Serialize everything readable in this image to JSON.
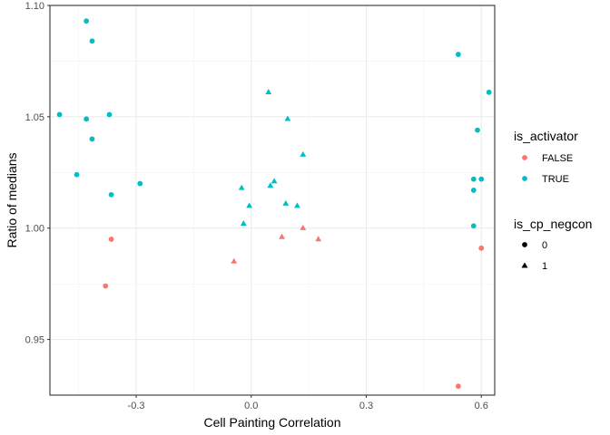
{
  "chart_data": {
    "type": "scatter",
    "xlabel": "Cell Painting Correlation",
    "ylabel": "Ratio of medians",
    "xlim": [
      -0.525,
      0.635
    ],
    "ylim": [
      0.925,
      1.1
    ],
    "x_ticks": [
      -0.3,
      0.0,
      0.3,
      0.6
    ],
    "x_tick_labels": [
      "-0.3",
      "0.0",
      "0.3",
      "0.6"
    ],
    "y_ticks": [
      0.95,
      1.0,
      1.05,
      1.1
    ],
    "y_tick_labels": [
      "0.95",
      "1.00",
      "1.05",
      "1.10"
    ],
    "grid": true,
    "legend_position": "right",
    "color_legend": {
      "title": "is_activator",
      "entries": [
        {
          "label": "FALSE",
          "color": "#F8766D"
        },
        {
          "label": "TRUE",
          "color": "#00BFC4"
        }
      ]
    },
    "shape_legend": {
      "title": "is_cp_negcon",
      "entries": [
        {
          "label": "0",
          "shape": "circle"
        },
        {
          "label": "1",
          "shape": "triangle"
        }
      ]
    },
    "points": [
      {
        "x": -0.43,
        "y": 1.093,
        "activator": "TRUE",
        "negcon": "0"
      },
      {
        "x": -0.415,
        "y": 1.084,
        "activator": "TRUE",
        "negcon": "0"
      },
      {
        "x": -0.5,
        "y": 1.051,
        "activator": "TRUE",
        "negcon": "0"
      },
      {
        "x": -0.43,
        "y": 1.049,
        "activator": "TRUE",
        "negcon": "0"
      },
      {
        "x": -0.37,
        "y": 1.051,
        "activator": "TRUE",
        "negcon": "0"
      },
      {
        "x": -0.415,
        "y": 1.04,
        "activator": "TRUE",
        "negcon": "0"
      },
      {
        "x": -0.455,
        "y": 1.024,
        "activator": "TRUE",
        "negcon": "0"
      },
      {
        "x": -0.29,
        "y": 1.02,
        "activator": "TRUE",
        "negcon": "0"
      },
      {
        "x": -0.365,
        "y": 1.015,
        "activator": "TRUE",
        "negcon": "0"
      },
      {
        "x": -0.365,
        "y": 0.995,
        "activator": "FALSE",
        "negcon": "0"
      },
      {
        "x": -0.38,
        "y": 0.974,
        "activator": "FALSE",
        "negcon": "0"
      },
      {
        "x": 0.045,
        "y": 1.061,
        "activator": "TRUE",
        "negcon": "1"
      },
      {
        "x": 0.095,
        "y": 1.049,
        "activator": "TRUE",
        "negcon": "1"
      },
      {
        "x": 0.135,
        "y": 1.033,
        "activator": "TRUE",
        "negcon": "1"
      },
      {
        "x": -0.025,
        "y": 1.018,
        "activator": "TRUE",
        "negcon": "1"
      },
      {
        "x": 0.06,
        "y": 1.021,
        "activator": "TRUE",
        "negcon": "1"
      },
      {
        "x": 0.05,
        "y": 1.019,
        "activator": "TRUE",
        "negcon": "1"
      },
      {
        "x": -0.005,
        "y": 1.01,
        "activator": "TRUE",
        "negcon": "1"
      },
      {
        "x": 0.09,
        "y": 1.011,
        "activator": "TRUE",
        "negcon": "1"
      },
      {
        "x": 0.12,
        "y": 1.01,
        "activator": "TRUE",
        "negcon": "1"
      },
      {
        "x": -0.02,
        "y": 1.002,
        "activator": "TRUE",
        "negcon": "1"
      },
      {
        "x": 0.135,
        "y": 1.0,
        "activator": "FALSE",
        "negcon": "1"
      },
      {
        "x": 0.08,
        "y": 0.996,
        "activator": "FALSE",
        "negcon": "1"
      },
      {
        "x": 0.175,
        "y": 0.995,
        "activator": "FALSE",
        "negcon": "1"
      },
      {
        "x": -0.045,
        "y": 0.985,
        "activator": "FALSE",
        "negcon": "1"
      },
      {
        "x": 0.54,
        "y": 1.078,
        "activator": "TRUE",
        "negcon": "0"
      },
      {
        "x": 0.62,
        "y": 1.061,
        "activator": "TRUE",
        "negcon": "0"
      },
      {
        "x": 0.59,
        "y": 1.044,
        "activator": "TRUE",
        "negcon": "0"
      },
      {
        "x": 0.58,
        "y": 1.022,
        "activator": "TRUE",
        "negcon": "0"
      },
      {
        "x": 0.6,
        "y": 1.022,
        "activator": "TRUE",
        "negcon": "0"
      },
      {
        "x": 0.58,
        "y": 1.017,
        "activator": "TRUE",
        "negcon": "0"
      },
      {
        "x": 0.58,
        "y": 1.001,
        "activator": "TRUE",
        "negcon": "0"
      },
      {
        "x": 0.6,
        "y": 0.991,
        "activator": "FALSE",
        "negcon": "0"
      },
      {
        "x": 0.54,
        "y": 0.929,
        "activator": "FALSE",
        "negcon": "0"
      }
    ]
  }
}
